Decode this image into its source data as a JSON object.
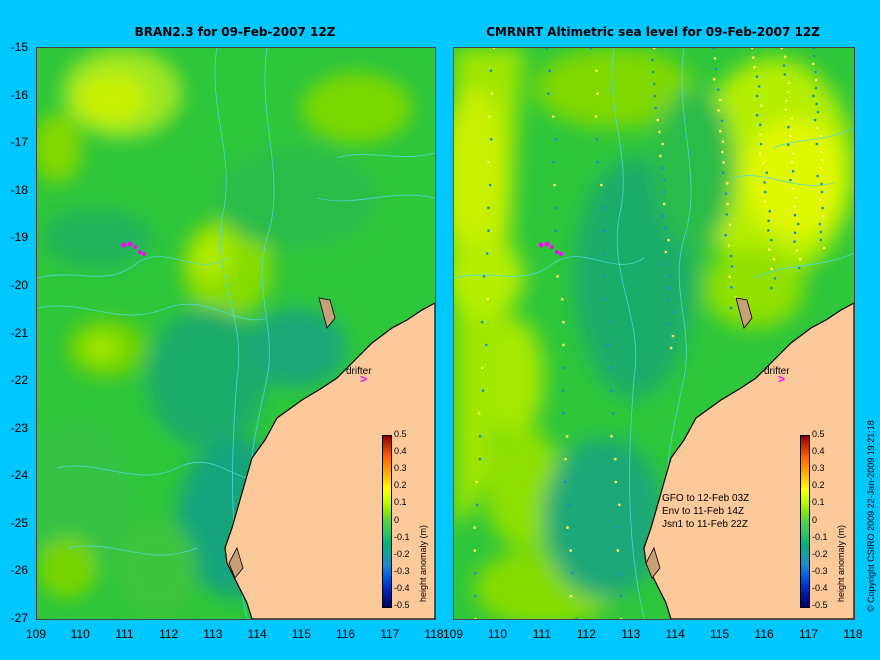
{
  "panels": [
    {
      "id": "left",
      "title": "BRAN2.3 for 09-Feb-2007 12Z"
    },
    {
      "id": "right",
      "title": "CMRNRT Altimetric sea level  for 09-Feb-2007 12Z"
    }
  ],
  "y_ticks": [
    "-15",
    "-16",
    "-17",
    "-18",
    "-19",
    "-20",
    "-21",
    "-22",
    "-23",
    "-24",
    "-25",
    "-26",
    "-27"
  ],
  "x_ticks_left": [
    "109",
    "110",
    "111",
    "112",
    "113",
    "114",
    "115",
    "116",
    "117",
    "118"
  ],
  "x_ticks_right": [
    "109",
    "110",
    "111",
    "112",
    "113",
    "114",
    "115",
    "116",
    "117",
    "118"
  ],
  "colorbar": {
    "label": "height anomaly (m)",
    "ticks": [
      "0.5",
      "0.4",
      "0.3",
      "0.2",
      "0.1",
      "0",
      "-0.1",
      "-0.2",
      "-0.3",
      "-0.4",
      "-0.5"
    ],
    "colors": [
      "#8b0000",
      "#c83200",
      "#ff6400",
      "#ff9600",
      "#ffc800",
      "#ffff00",
      "#c8ff00",
      "#96e600",
      "#50d24b",
      "#32c864",
      "#00b478",
      "#14a0a0",
      "#1e8cc8",
      "#0064e6",
      "#0032c8",
      "#001496",
      "#000064"
    ]
  },
  "drifter_label": "drifter",
  "drifter_marker": ">",
  "satellite_notes": [
    "GFO to 12-Feb 03Z",
    "Env to 11-Feb 14Z",
    "Jsn1 to 11-Feb 22Z"
  ],
  "copyright": "© Copyright CSIRO 2009  22-Jan-2009 19:21:18",
  "colors": {
    "background": "#00c8ff",
    "land": "#fcc99b",
    "ocean_base": "#2ec63a",
    "contour": "#4ddcdc",
    "drifter": "#ff00ff"
  },
  "map": {
    "lon_range": [
      109,
      118
    ],
    "lat_range": [
      -27,
      -15
    ]
  }
}
